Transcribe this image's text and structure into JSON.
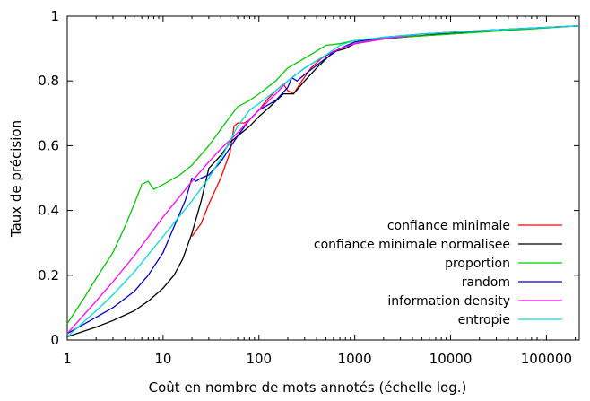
{
  "chart_data": {
    "type": "line",
    "x_scale": "log",
    "xlim": [
      1,
      220000
    ],
    "ylim": [
      0,
      1
    ],
    "grid": false,
    "legend_position": "bottom-right",
    "xlabel": "Coût en nombre de mots annotés (échelle log.)",
    "ylabel": "Taux de précision",
    "x_ticks": [
      1,
      10,
      100,
      1000,
      10000,
      100000
    ],
    "x_tick_labels": [
      "1",
      "10",
      "100",
      "1000",
      "10000",
      "100000"
    ],
    "y_ticks": [
      0,
      0.2,
      0.4,
      0.6,
      0.8,
      1
    ],
    "y_tick_labels": [
      "0",
      "0.2",
      "0.4",
      "0.6",
      "0.8",
      "1"
    ],
    "series": [
      {
        "name": "confiance minimale",
        "color": "#ff0000",
        "x": [
          20,
          25,
          30,
          40,
          50,
          55,
          60,
          70,
          80,
          100,
          120,
          150,
          180,
          200,
          230,
          280,
          350,
          450,
          600,
          800,
          1000,
          1500,
          3000,
          10000,
          50000,
          220000
        ],
        "y": [
          0.32,
          0.36,
          0.42,
          0.5,
          0.58,
          0.66,
          0.67,
          0.67,
          0.68,
          0.71,
          0.74,
          0.77,
          0.79,
          0.77,
          0.76,
          0.8,
          0.84,
          0.87,
          0.89,
          0.9,
          0.915,
          0.925,
          0.935,
          0.945,
          0.96,
          0.97
        ]
      },
      {
        "name": "confiance minimale normalisee",
        "color": "#000000",
        "x": [
          1,
          2,
          3,
          5,
          7,
          10,
          13,
          16,
          20,
          25,
          30,
          40,
          50,
          60,
          80,
          100,
          130,
          180,
          230,
          300,
          400,
          600,
          800,
          1000,
          2000,
          5000,
          20000,
          220000
        ],
        "y": [
          0.01,
          0.04,
          0.06,
          0.09,
          0.12,
          0.16,
          0.2,
          0.25,
          0.33,
          0.43,
          0.53,
          0.57,
          0.61,
          0.63,
          0.66,
          0.69,
          0.72,
          0.76,
          0.76,
          0.8,
          0.84,
          0.89,
          0.9,
          0.915,
          0.93,
          0.94,
          0.955,
          0.97
        ]
      },
      {
        "name": "proportion",
        "color": "#00cc00",
        "x": [
          1,
          1.5,
          2,
          3,
          4,
          5,
          6,
          7,
          8,
          10,
          15,
          20,
          30,
          50,
          60,
          80,
          100,
          150,
          200,
          300,
          500,
          700,
          1000,
          3000,
          10000,
          220000
        ],
        "y": [
          0.05,
          0.13,
          0.19,
          0.27,
          0.35,
          0.42,
          0.48,
          0.49,
          0.465,
          0.48,
          0.51,
          0.54,
          0.6,
          0.69,
          0.72,
          0.74,
          0.76,
          0.8,
          0.84,
          0.87,
          0.91,
          0.915,
          0.925,
          0.935,
          0.945,
          0.97
        ]
      },
      {
        "name": "random",
        "color": "#0000cc",
        "x": [
          1,
          2,
          3,
          5,
          7,
          10,
          13,
          17,
          20,
          22,
          25,
          30,
          40,
          60,
          80,
          100,
          150,
          200,
          220,
          250,
          300,
          500,
          700,
          1000,
          2000,
          5000,
          20000,
          220000
        ],
        "y": [
          0.02,
          0.07,
          0.1,
          0.15,
          0.2,
          0.27,
          0.35,
          0.43,
          0.5,
          0.49,
          0.5,
          0.51,
          0.55,
          0.63,
          0.68,
          0.71,
          0.74,
          0.78,
          0.81,
          0.8,
          0.82,
          0.87,
          0.9,
          0.92,
          0.935,
          0.945,
          0.955,
          0.97
        ]
      },
      {
        "name": "information density",
        "color": "#ff00ff",
        "x": [
          1,
          2,
          3,
          5,
          10,
          20,
          30,
          40,
          60,
          80,
          100,
          150,
          200,
          300,
          500,
          700,
          1000,
          2000,
          5000,
          20000,
          220000
        ],
        "y": [
          0.02,
          0.12,
          0.18,
          0.26,
          0.38,
          0.49,
          0.55,
          0.59,
          0.64,
          0.68,
          0.71,
          0.76,
          0.8,
          0.84,
          0.88,
          0.9,
          0.915,
          0.93,
          0.945,
          0.955,
          0.97
        ]
      },
      {
        "name": "entropie",
        "color": "#00dddd",
        "x": [
          1,
          2,
          3,
          5,
          10,
          20,
          30,
          40,
          60,
          80,
          100,
          150,
          200,
          300,
          500,
          700,
          1000,
          2000,
          5000,
          20000,
          220000
        ],
        "y": [
          0.01,
          0.09,
          0.14,
          0.21,
          0.32,
          0.43,
          0.5,
          0.56,
          0.66,
          0.71,
          0.73,
          0.77,
          0.8,
          0.84,
          0.88,
          0.91,
          0.925,
          0.935,
          0.945,
          0.955,
          0.97
        ]
      }
    ]
  }
}
